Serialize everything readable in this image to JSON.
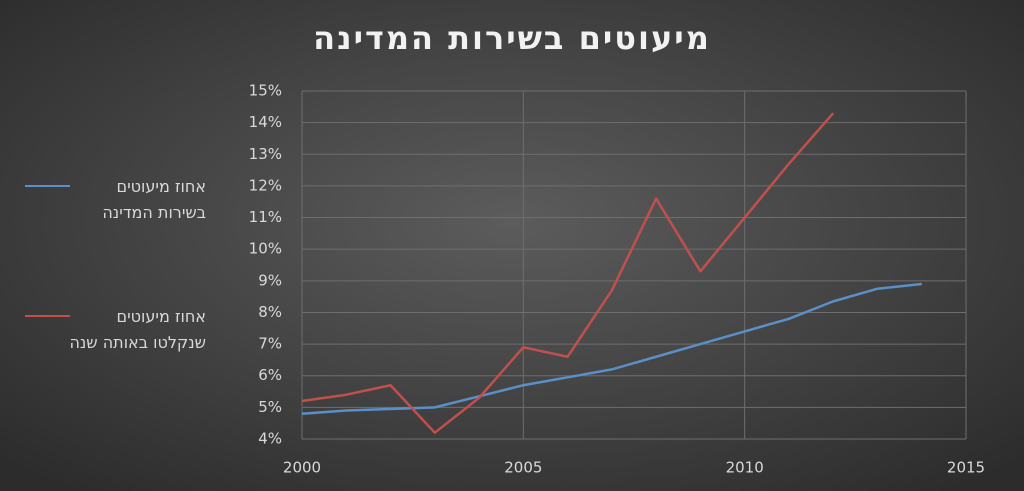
{
  "chart_data": {
    "type": "line",
    "title": "מיעוטים בשירות המדינה",
    "x": [
      2000,
      2001,
      2002,
      2003,
      2004,
      2005,
      2006,
      2007,
      2008,
      2009,
      2010,
      2011,
      2012,
      2013,
      2014
    ],
    "series": [
      {
        "name": "אחוז מיעוטים בשירות המדינה",
        "color": "#5b8fc7",
        "values": [
          4.8,
          4.9,
          4.95,
          5.0,
          5.35,
          5.7,
          5.95,
          6.2,
          6.6,
          7.0,
          7.4,
          7.8,
          8.35,
          8.75,
          8.9
        ]
      },
      {
        "name": "אחוז מיעוטים שנקלטו באותה שנה",
        "color": "#c0504d",
        "values": [
          5.2,
          5.4,
          5.7,
          4.2,
          5.3,
          6.9,
          6.6,
          8.7,
          11.6,
          9.3,
          11.0,
          12.7,
          14.3,
          null,
          null
        ]
      }
    ],
    "xlim": [
      2000,
      2015
    ],
    "xticks": [
      2000,
      2005,
      2010,
      2015
    ],
    "ylim": [
      4,
      15
    ],
    "yticks": [
      {
        "value": 4,
        "label": "4%"
      },
      {
        "value": 5,
        "label": "5%"
      },
      {
        "value": 6,
        "label": "6%"
      },
      {
        "value": 7,
        "label": "7%"
      },
      {
        "value": 8,
        "label": "8%"
      },
      {
        "value": 9,
        "label": "9%"
      },
      {
        "value": 10,
        "label": "10%"
      },
      {
        "value": 11,
        "label": "11%"
      },
      {
        "value": 12,
        "label": "12%"
      },
      {
        "value": 13,
        "label": "13%"
      },
      {
        "value": 14,
        "label": "14%"
      },
      {
        "value": 15,
        "label": "15%"
      }
    ],
    "grid": true,
    "legend": "left"
  }
}
